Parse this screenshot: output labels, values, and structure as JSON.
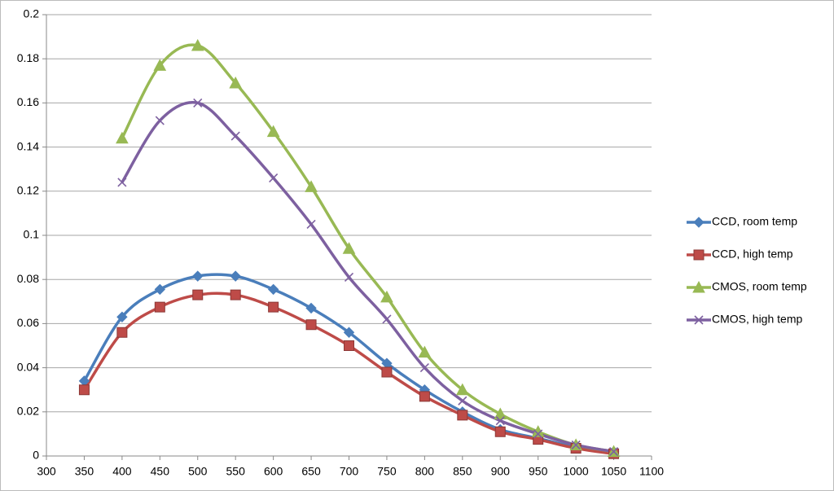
{
  "chart_data": {
    "type": "line",
    "x": [
      350,
      400,
      450,
      500,
      550,
      600,
      650,
      700,
      750,
      800,
      850,
      900,
      950,
      1000,
      1050
    ],
    "series": [
      {
        "name": "CCD, room temp",
        "color": "#4a7ebb",
        "marker": "diamond",
        "values": [
          0.034,
          0.063,
          0.0755,
          0.0815,
          0.0815,
          0.0755,
          0.067,
          0.056,
          0.042,
          0.03,
          0.02,
          0.012,
          0.008,
          0.004,
          0.002
        ]
      },
      {
        "name": "CCD, high temp",
        "color": "#be4b48",
        "marker": "square",
        "values": [
          0.03,
          0.056,
          0.0675,
          0.073,
          0.073,
          0.0675,
          0.0595,
          0.05,
          0.038,
          0.027,
          0.0185,
          0.011,
          0.0075,
          0.0035,
          0.001
        ]
      },
      {
        "name": "CMOS, room temp",
        "color": "#98b954",
        "marker": "triangle",
        "values": [
          null,
          0.144,
          0.177,
          0.186,
          0.169,
          0.147,
          0.122,
          0.094,
          0.072,
          0.047,
          0.03,
          0.019,
          0.011,
          0.005,
          0.002
        ]
      },
      {
        "name": "CMOS, high temp",
        "color": "#7d60a0",
        "marker": "x",
        "values": [
          null,
          0.124,
          0.152,
          0.16,
          0.145,
          0.126,
          0.105,
          0.081,
          0.062,
          0.04,
          0.025,
          0.016,
          0.01,
          0.005,
          0.002
        ]
      }
    ],
    "xlim": [
      300,
      1100
    ],
    "xticks": [
      300,
      350,
      400,
      450,
      500,
      550,
      600,
      650,
      700,
      750,
      800,
      850,
      900,
      950,
      1000,
      1050,
      1100
    ],
    "ylim": [
      0,
      0.2
    ],
    "yticks": [
      0,
      0.02,
      0.04,
      0.06,
      0.08,
      0.1,
      0.12,
      0.14,
      0.16,
      0.18,
      0.2
    ],
    "grid": true,
    "smooth": true,
    "legend": "right"
  }
}
